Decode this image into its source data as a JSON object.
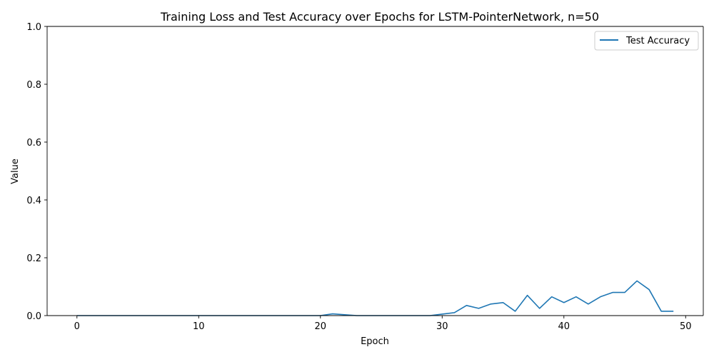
{
  "chart_data": {
    "type": "line",
    "title": "Training Loss and Test Accuracy over Epochs for LSTM-PointerNetwork, n=50",
    "xlabel": "Epoch",
    "ylabel": "Value",
    "xlim": [
      -2.45,
      51.45
    ],
    "ylim": [
      0,
      1
    ],
    "xticks": [
      0,
      10,
      20,
      30,
      40,
      50
    ],
    "yticks": [
      0.0,
      0.2,
      0.4,
      0.6,
      0.8,
      1.0
    ],
    "ytick_labels": [
      "0.0",
      "0.2",
      "0.4",
      "0.6",
      "0.8",
      "1.0"
    ],
    "legend_position": "top-right",
    "grid": false,
    "series": [
      {
        "name": "Test Accuracy",
        "color": "#1f77b4",
        "x": [
          0,
          1,
          2,
          3,
          4,
          5,
          6,
          7,
          8,
          9,
          10,
          11,
          12,
          13,
          14,
          15,
          16,
          17,
          18,
          19,
          20,
          21,
          22,
          23,
          24,
          25,
          26,
          27,
          28,
          29,
          30,
          31,
          32,
          33,
          34,
          35,
          36,
          37,
          38,
          39,
          40,
          41,
          42,
          43,
          44,
          45,
          46,
          47,
          48,
          49
        ],
        "values": [
          0,
          0,
          0,
          0,
          0,
          0,
          0,
          0,
          0,
          0,
          0,
          0,
          0,
          0,
          0,
          0,
          0,
          0,
          0,
          0,
          0,
          0.006,
          0.003,
          0,
          0,
          0,
          0,
          0,
          0,
          0,
          0.005,
          0.01,
          0.035,
          0.025,
          0.04,
          0.045,
          0.015,
          0.07,
          0.025,
          0.065,
          0.045,
          0.065,
          0.04,
          0.065,
          0.08,
          0.08,
          0.12,
          0.09,
          0.015,
          0.015
        ]
      }
    ]
  }
}
